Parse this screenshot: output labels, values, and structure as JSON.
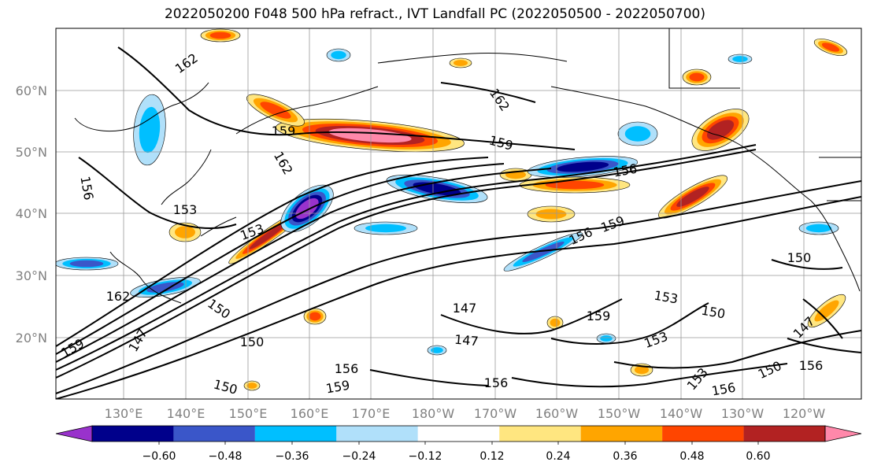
{
  "title": "2022050200 F048 500 hPa refract., IVT Landfall PC (2022050500 - 2022050700)",
  "map": {
    "lat_labels": [
      "60°N",
      "50°N",
      "40°N",
      "30°N",
      "20°N"
    ],
    "lon_labels": [
      "130°E",
      "140°E",
      "150°E",
      "160°E",
      "170°E",
      "180°W",
      "170°W",
      "160°W",
      "150°W",
      "140°W",
      "130°W",
      "120°W"
    ],
    "contour_labels": [
      "162",
      "159",
      "162",
      "162",
      "159",
      "156",
      "156",
      "153",
      "153",
      "162",
      "150",
      "147",
      "147",
      "150",
      "150",
      "147",
      "159",
      "156",
      "159",
      "153",
      "150",
      "150",
      "153",
      "150",
      "156",
      "156",
      "159",
      "147",
      "156",
      "159",
      "156",
      "153"
    ]
  },
  "colorbar": {
    "colors": [
      "#9932cc",
      "#00008b",
      "#3a56c9",
      "#00bfff",
      "#b0e0fa",
      "#ffffff",
      "#ffe680",
      "#ffa500",
      "#ff4500",
      "#b22222",
      "#ff88aa"
    ],
    "tick_labels": [
      "−0.60",
      "−0.48",
      "−0.36",
      "−0.24",
      "−0.12",
      "0.12",
      "0.24",
      "0.36",
      "0.48",
      "0.60"
    ]
  }
}
